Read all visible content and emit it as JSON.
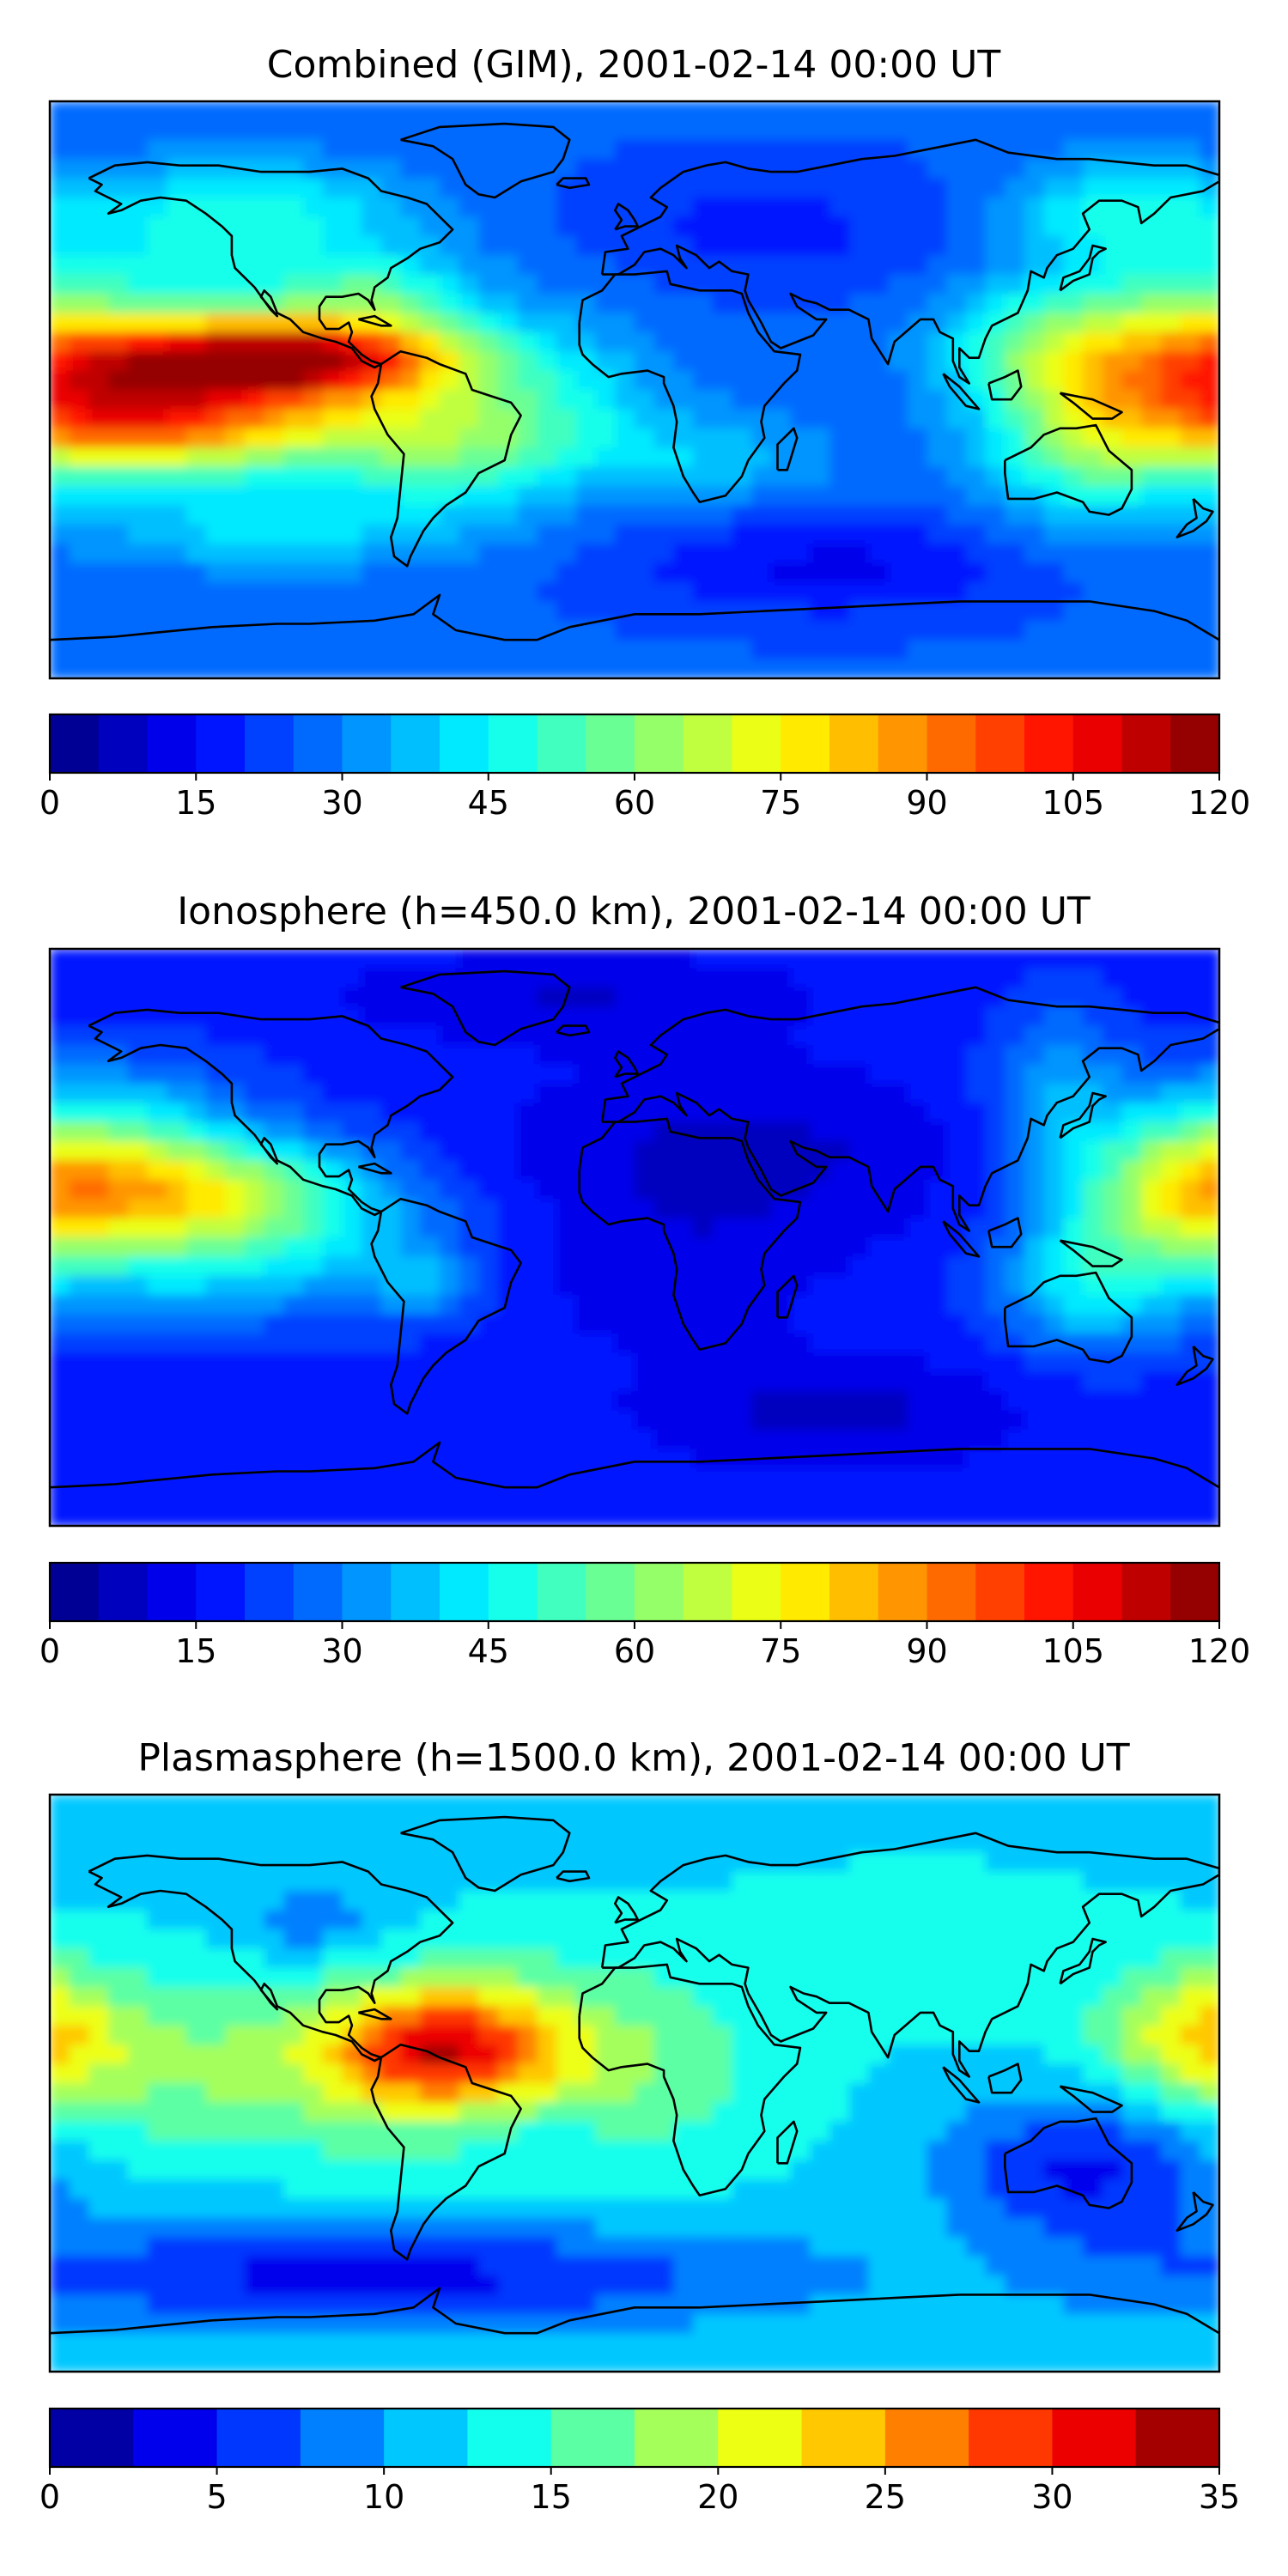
{
  "chart_data": [
    {
      "type": "heatmap",
      "title": "Combined (GIM), 2001-02-14 00:00 UT",
      "colorbar": {
        "range": [
          0,
          120
        ],
        "levels": [
          0,
          5,
          10,
          15,
          20,
          25,
          30,
          35,
          40,
          45,
          50,
          55,
          60,
          65,
          70,
          75,
          80,
          85,
          90,
          95,
          100,
          105,
          110,
          115,
          120
        ],
        "ticks": [
          0,
          15,
          30,
          45,
          60,
          75,
          90,
          105,
          120
        ]
      },
      "blobs": [
        {
          "lon": -110,
          "lat": 10,
          "slon": 40,
          "slat": 8,
          "value": 62
        },
        {
          "lon": -125,
          "lat": 5,
          "slon": 60,
          "slat": 22,
          "value": 40
        },
        {
          "lon": -160,
          "lat": -10,
          "slon": 25,
          "slat": 12,
          "value": 30
        },
        {
          "lon": -125,
          "lat": -10,
          "slon": 35,
          "slat": 10,
          "value": 22
        },
        {
          "lon": -120,
          "lat": 55,
          "slon": 35,
          "slat": 12,
          "value": 20
        },
        {
          "lon": -80,
          "lat": 30,
          "slon": 15,
          "slat": 8,
          "value": 15
        },
        {
          "lon": -55,
          "lat": -18,
          "slon": 25,
          "slat": 14,
          "value": 22
        },
        {
          "lon": -20,
          "lat": -10,
          "slon": 20,
          "slat": 12,
          "value": 10
        },
        {
          "lon": 25,
          "lat": -22,
          "slon": 25,
          "slat": 10,
          "value": 12
        },
        {
          "lon": 140,
          "lat": -12,
          "slon": 22,
          "slat": 20,
          "value": 30
        },
        {
          "lon": 170,
          "lat": 10,
          "slon": 25,
          "slat": 18,
          "value": 30
        },
        {
          "lon": 120,
          "lat": 15,
          "slon": 20,
          "slat": 12,
          "value": 18
        },
        {
          "lon": 150,
          "lat": 55,
          "slon": 25,
          "slat": 12,
          "value": 20
        },
        {
          "lon": 60,
          "lat": -55,
          "slon": 45,
          "slat": 12,
          "value": -12
        },
        {
          "lon": 40,
          "lat": 50,
          "slon": 40,
          "slat": 15,
          "value": -8
        },
        {
          "lon": -110,
          "lat": -45,
          "slon": 40,
          "slat": 8,
          "value": 12
        }
      ],
      "base": 26
    },
    {
      "type": "heatmap",
      "title": "Ionosphere  (h=450.0 km), 2001-02-14 00:00 UT",
      "colorbar": {
        "range": [
          0,
          120
        ],
        "levels": [
          0,
          5,
          10,
          15,
          20,
          25,
          30,
          35,
          40,
          45,
          50,
          55,
          60,
          65,
          70,
          75,
          80,
          85,
          90,
          95,
          100,
          105,
          110,
          115,
          120
        ],
        "ticks": [
          0,
          15,
          30,
          45,
          60,
          75,
          90,
          105,
          120
        ]
      },
      "blobs": [
        {
          "lon": -140,
          "lat": 15,
          "slon": 40,
          "slat": 12,
          "value": 45
        },
        {
          "lon": -130,
          "lat": -5,
          "slon": 45,
          "slat": 14,
          "value": 25
        },
        {
          "lon": -160,
          "lat": 35,
          "slon": 30,
          "slat": 15,
          "value": 18
        },
        {
          "lon": -65,
          "lat": -15,
          "slon": 12,
          "slat": 8,
          "value": 12
        },
        {
          "lon": 170,
          "lat": 15,
          "slon": 25,
          "slat": 18,
          "value": 35
        },
        {
          "lon": 140,
          "lat": -15,
          "slon": 20,
          "slat": 15,
          "value": 22
        },
        {
          "lon": 130,
          "lat": 45,
          "slon": 15,
          "slat": 20,
          "value": 15
        },
        {
          "lon": 30,
          "lat": 25,
          "slon": 50,
          "slat": 20,
          "value": -10
        },
        {
          "lon": 10,
          "lat": -15,
          "slon": 30,
          "slat": 15,
          "value": -6
        },
        {
          "lon": 60,
          "lat": -55,
          "slon": 40,
          "slat": 12,
          "value": -10
        },
        {
          "lon": -20,
          "lat": 75,
          "slon": 50,
          "slat": 10,
          "value": -8
        }
      ],
      "base": 18
    },
    {
      "type": "heatmap",
      "title": "Plasmasphere (h=1500.0 km), 2001-02-14 00:00 UT",
      "colorbar": {
        "range": [
          0,
          35
        ],
        "levels": [
          0,
          2.5,
          5,
          7.5,
          10,
          12.5,
          15,
          17.5,
          20,
          22.5,
          25,
          27.5,
          30,
          32.5,
          35
        ],
        "ticks": [
          0,
          5,
          10,
          15,
          20,
          25,
          30,
          35
        ]
      },
      "blobs": [
        {
          "lon": -60,
          "lat": 12,
          "slon": 22,
          "slat": 12,
          "value": 14
        },
        {
          "lon": -110,
          "lat": 5,
          "slon": 70,
          "slat": 20,
          "value": 6
        },
        {
          "lon": -20,
          "lat": 5,
          "slon": 40,
          "slat": 25,
          "value": 5
        },
        {
          "lon": 175,
          "lat": 15,
          "slon": 20,
          "slat": 15,
          "value": 9
        },
        {
          "lon": -30,
          "lat": -15,
          "slon": 20,
          "slat": 10,
          "value": -3
        },
        {
          "lon": 140,
          "lat": -25,
          "slon": 30,
          "slat": 18,
          "value": -8
        },
        {
          "lon": -80,
          "lat": -60,
          "slon": 90,
          "slat": 12,
          "value": -8
        },
        {
          "lon": -100,
          "lat": 50,
          "slon": 15,
          "slat": 8,
          "value": -4
        },
        {
          "lon": 90,
          "lat": 45,
          "slon": 40,
          "slat": 15,
          "value": 2
        }
      ],
      "base": 12
    }
  ]
}
